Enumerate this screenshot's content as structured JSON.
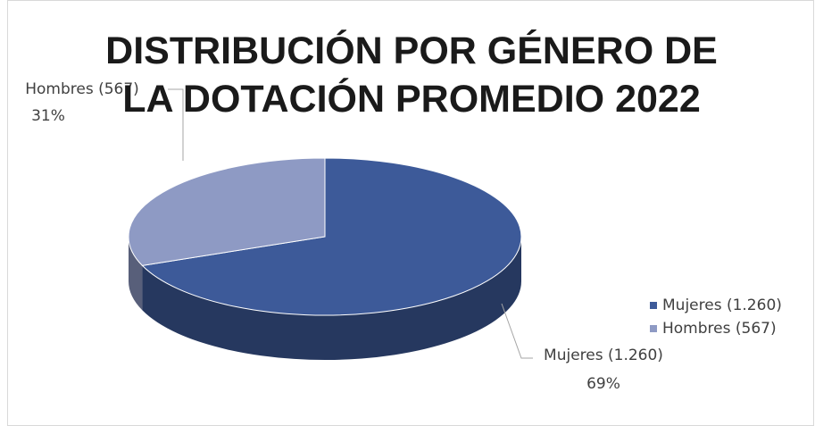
{
  "chart_data": {
    "type": "pie",
    "title": "DISTRIBUCIÓN POR GÉNERO DE LA DOTACIÓN PROMEDIO 2022",
    "categories": [
      "Mujeres (1.260)",
      "Hombres (567)"
    ],
    "values": [
      69,
      31
    ],
    "value_labels": [
      "69%",
      "31%"
    ],
    "colors": [
      "#3d5a99",
      "#8e9ac4"
    ],
    "legend": "right"
  }
}
